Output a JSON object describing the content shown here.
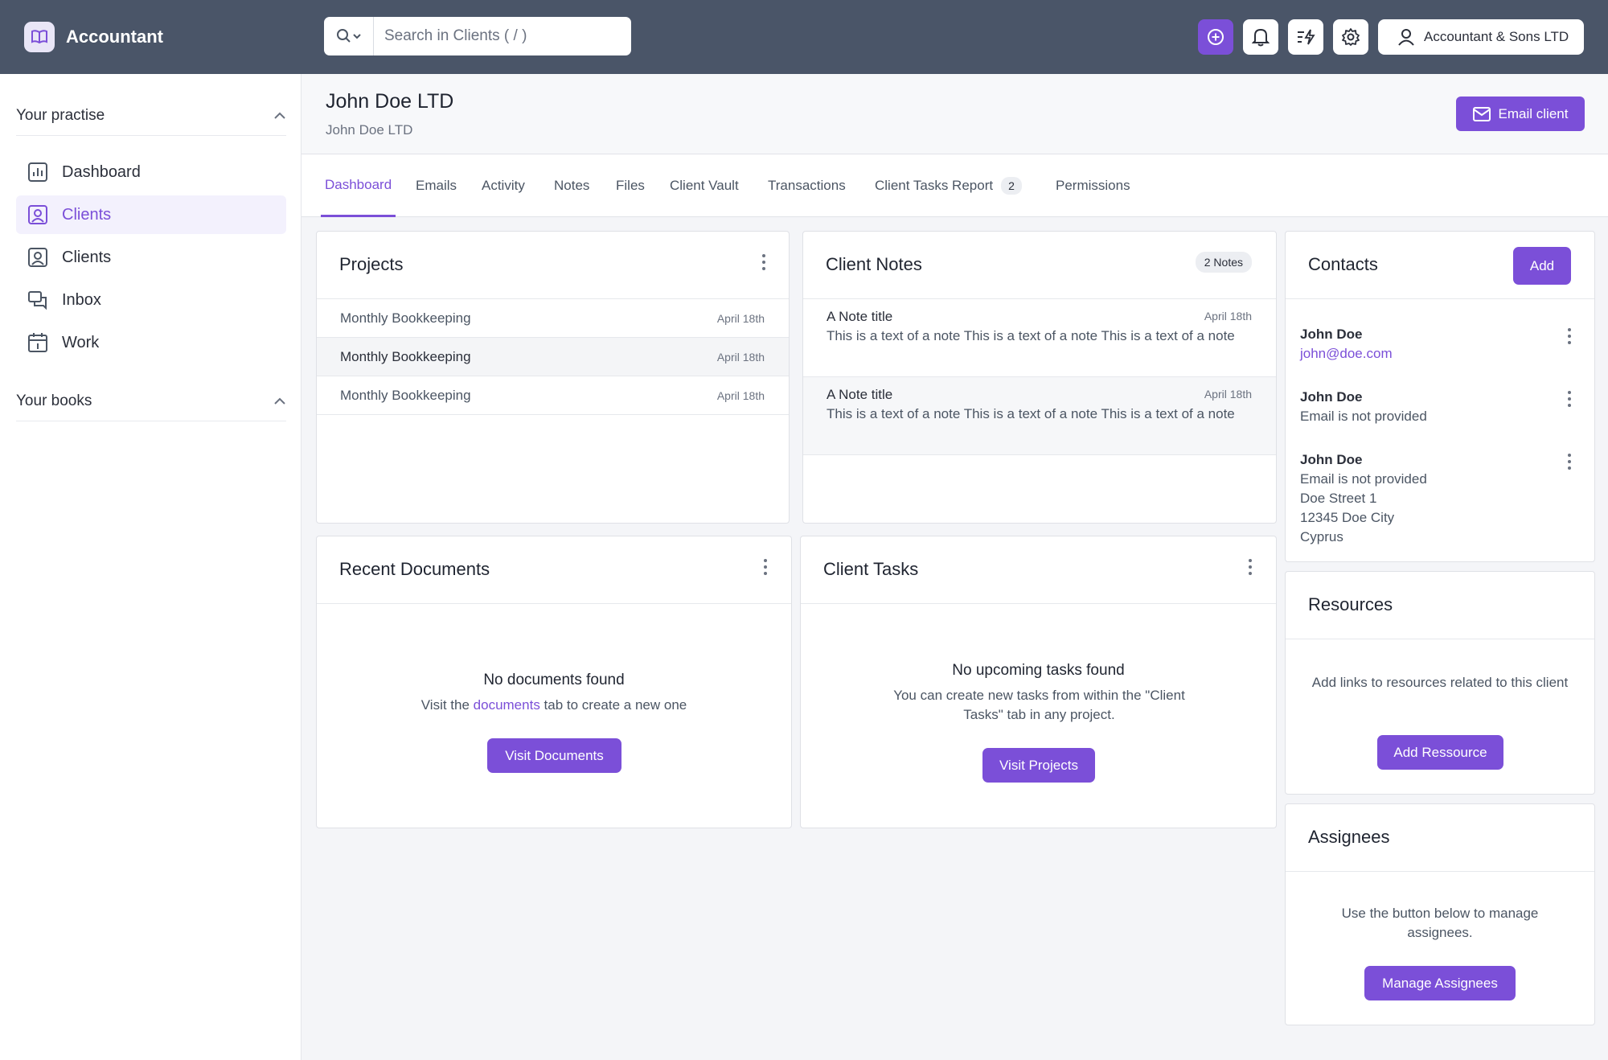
{
  "app": {
    "name": "Accountant",
    "logo_icon": "book-icon"
  },
  "sidebar": {
    "sections": [
      {
        "title": "Your practise",
        "chevron": "chevron-up-icon"
      },
      {
        "title": "Your books",
        "chevron": "chevron-up-icon"
      }
    ],
    "items": [
      {
        "label": "Dashboard",
        "icon": "bar-chart-icon"
      },
      {
        "label": "Clients",
        "icon": "user-square-icon",
        "active": true
      },
      {
        "label": "Clients",
        "icon": "user-square-icon"
      },
      {
        "label": "Inbox",
        "icon": "chat-bubbles-icon"
      },
      {
        "label": "Work",
        "icon": "calendar-icon"
      }
    ]
  },
  "topbar": {
    "search_placeholder": "Search in Clients ( / )",
    "account_label": "Accountant & Sons LTD"
  },
  "client": {
    "title": "John Doe LTD",
    "subtitle": "John Doe LTD",
    "email_button": "Email client"
  },
  "tabs": [
    {
      "label": "Dashboard",
      "active": true
    },
    {
      "label": "Emails"
    },
    {
      "label": "Activity"
    },
    {
      "label": "Notes"
    },
    {
      "label": "Files"
    },
    {
      "label": "Client Vault"
    },
    {
      "label": "Transactions"
    },
    {
      "label": "Client Tasks Report",
      "badge": "2"
    },
    {
      "label": "Permissions"
    }
  ],
  "projects": {
    "title": "Projects",
    "rows": [
      {
        "name": "Monthly Bookkeeping",
        "date": "April 18th"
      },
      {
        "name": "Monthly Bookkeeping",
        "date": "April 18th"
      },
      {
        "name": "Monthly Bookkeeping",
        "date": "April 18th"
      }
    ]
  },
  "notes": {
    "title": "Client Notes",
    "count_label": "2 Notes",
    "items": [
      {
        "title": "A Note title",
        "date": "April 18th",
        "text": "This is a text of a note This is a text of a note This is a text of a note"
      },
      {
        "title": "A Note title",
        "date": "April 18th",
        "text": "This is a text of a note This is a text of a note This is a text of a note"
      }
    ]
  },
  "contacts": {
    "title": "Contacts",
    "add_label": "Add",
    "items": [
      {
        "name": "John Doe",
        "email": "john@doe.com"
      },
      {
        "name": "John Doe",
        "note": "Email is not provided"
      },
      {
        "name": "John Doe",
        "note": "Email is not provided",
        "address": [
          "Doe Street 1",
          "12345 Doe City",
          "Cyprus"
        ]
      }
    ]
  },
  "documents": {
    "title": "Recent Documents",
    "empty_title": "No documents found",
    "empty_pre": "Visit the ",
    "empty_link": "documents",
    "empty_post": " tab to create a new one",
    "button": "Visit Documents"
  },
  "tasks": {
    "title": "Client Tasks",
    "empty_title": "No upcoming tasks found",
    "empty_text": "You can create new tasks from within the \"Client Tasks\" tab in any project.",
    "button": "Visit Projects"
  },
  "resources": {
    "title": "Resources",
    "text": "Add links to resources related to this client",
    "button": "Add Ressource"
  },
  "assignees": {
    "title": "Assignees",
    "text": "Use the button below to manage assignees.",
    "button": "Manage Assignees"
  },
  "colors": {
    "accent": "#7b4fd8",
    "topbar": "#4a5568"
  }
}
